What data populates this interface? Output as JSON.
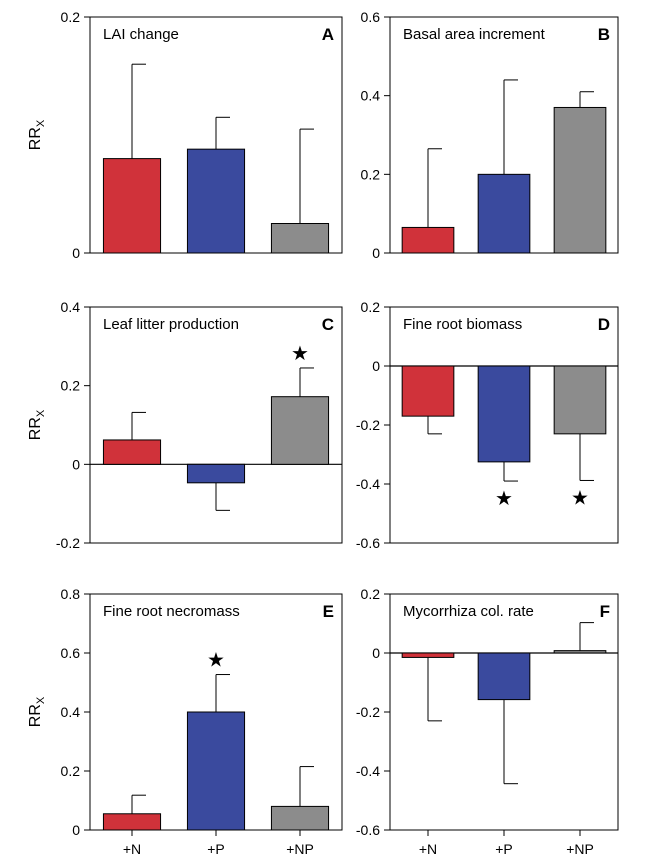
{
  "colors": {
    "+N": "#d0323a",
    "+P": "#3a4a9e",
    "+NP": "#8c8c8c"
  },
  "ylabel": {
    "main": "RR",
    "sub": "X"
  },
  "chart_data": [
    {
      "type": "bar",
      "letter": "A",
      "title": "LAI change",
      "categories": [
        "+N",
        "+P",
        "+NP"
      ],
      "values": [
        0.08,
        0.088,
        0.025
      ],
      "errors": [
        0.08,
        0.027,
        0.08
      ],
      "error_dir": [
        "up",
        "up",
        "up"
      ],
      "significant": [
        false,
        false,
        false
      ],
      "ylim": [
        0,
        0.2
      ],
      "yticks": [
        "0",
        "0.2"
      ],
      "ytick_values": [
        0,
        0.2
      ],
      "ylabel": "RRX",
      "show_xticks": false
    },
    {
      "type": "bar",
      "letter": "B",
      "title": "Basal area increment",
      "categories": [
        "+N",
        "+P",
        "+NP"
      ],
      "values": [
        0.065,
        0.2,
        0.37
      ],
      "errors": [
        0.2,
        0.24,
        0.04
      ],
      "error_dir": [
        "up",
        "up",
        "up"
      ],
      "significant": [
        false,
        false,
        false
      ],
      "ylim": [
        0,
        0.6
      ],
      "yticks": [
        "0",
        "0.2",
        "0.4",
        "0.6"
      ],
      "ytick_values": [
        0,
        0.2,
        0.4,
        0.6
      ],
      "ylabel": "",
      "show_xticks": false
    },
    {
      "type": "bar",
      "letter": "C",
      "title": "Leaf litter production",
      "categories": [
        "+N",
        "+P",
        "+NP"
      ],
      "values": [
        0.062,
        -0.047,
        0.172
      ],
      "errors": [
        0.07,
        0.07,
        0.073
      ],
      "error_dir": [
        "up",
        "down",
        "up"
      ],
      "significant": [
        false,
        false,
        true
      ],
      "ylim": [
        -0.2,
        0.4
      ],
      "yticks": [
        "-0.2",
        "0",
        "0.2",
        "0.4"
      ],
      "ytick_values": [
        -0.2,
        0,
        0.2,
        0.4
      ],
      "ylabel": "RRX",
      "show_xticks": false
    },
    {
      "type": "bar",
      "letter": "D",
      "title": "Fine root biomass",
      "categories": [
        "+N",
        "+P",
        "+NP"
      ],
      "values": [
        -0.17,
        -0.325,
        -0.23
      ],
      "errors": [
        0.06,
        0.065,
        0.158
      ],
      "error_dir": [
        "down",
        "down",
        "down"
      ],
      "significant": [
        false,
        true,
        true
      ],
      "ylim": [
        -0.6,
        0.2
      ],
      "yticks": [
        "-0.6",
        "-0.4",
        "-0.2",
        "0",
        "0.2"
      ],
      "ytick_values": [
        -0.6,
        -0.4,
        -0.2,
        0,
        0.2
      ],
      "ylabel": "",
      "show_xticks": false
    },
    {
      "type": "bar",
      "letter": "E",
      "title": "Fine root necromass",
      "categories": [
        "+N",
        "+P",
        "+NP"
      ],
      "values": [
        0.055,
        0.4,
        0.08
      ],
      "errors": [
        0.063,
        0.127,
        0.135
      ],
      "error_dir": [
        "up",
        "up",
        "up"
      ],
      "significant": [
        false,
        true,
        false
      ],
      "ylim": [
        0,
        0.8
      ],
      "yticks": [
        "0",
        "0.2",
        "0.4",
        "0.6",
        "0.8"
      ],
      "ytick_values": [
        0,
        0.2,
        0.4,
        0.6,
        0.8
      ],
      "ylabel": "RRX",
      "show_xticks": true
    },
    {
      "type": "bar",
      "letter": "F",
      "title": "Mycorrhiza col. rate",
      "categories": [
        "+N",
        "+P",
        "+NP"
      ],
      "values": [
        -0.015,
        -0.158,
        0.008
      ],
      "errors": [
        0.215,
        0.285,
        0.095
      ],
      "error_dir": [
        "down",
        "down",
        "up"
      ],
      "significant": [
        false,
        false,
        false
      ],
      "ylim": [
        -0.6,
        0.2
      ],
      "yticks": [
        "-0.6",
        "-0.4",
        "-0.2",
        "0",
        "0.2"
      ],
      "ytick_values": [
        -0.6,
        -0.4,
        -0.2,
        0,
        0.2
      ],
      "ylabel": "",
      "show_xticks": true
    }
  ]
}
